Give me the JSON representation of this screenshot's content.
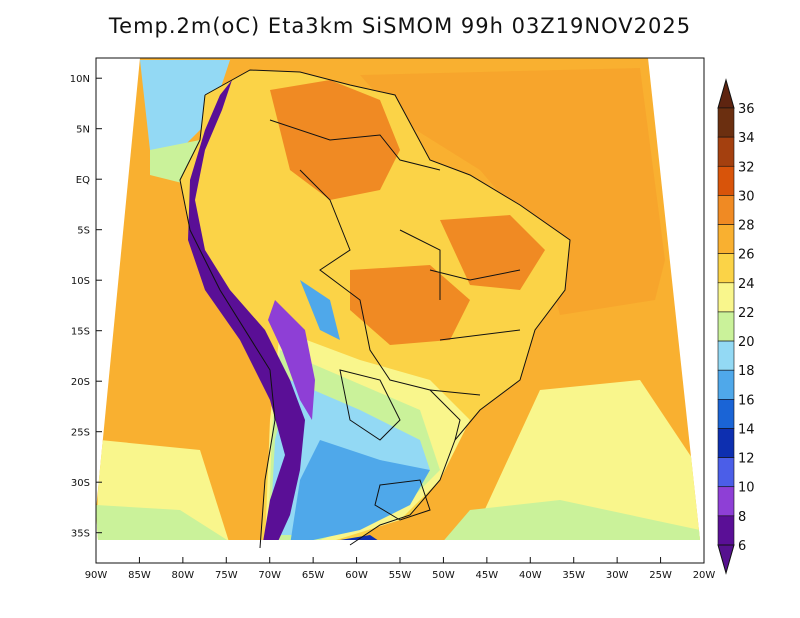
{
  "title": "Temp.2m(oC) Eta3km SiSMOM 99h 03Z19NOV2025",
  "map": {
    "y_axis": {
      "labels": [
        "10N",
        "5N",
        "EQ",
        "5S",
        "10S",
        "15S",
        "20S",
        "25S",
        "30S",
        "35S"
      ],
      "lats": [
        10,
        5,
        0,
        -5,
        -10,
        -15,
        -20,
        -25,
        -30,
        -35
      ]
    },
    "x_axis": {
      "labels": [
        "90W",
        "85W",
        "80W",
        "75W",
        "70W",
        "65W",
        "60W",
        "55W",
        "50W",
        "45W",
        "40W",
        "35W",
        "30W",
        "25W",
        "20W"
      ],
      "lons": [
        -90,
        -85,
        -80,
        -75,
        -70,
        -65,
        -60,
        -55,
        -50,
        -45,
        -40,
        -35,
        -30,
        -25,
        -20
      ]
    },
    "lat_range": [
      -38,
      12
    ],
    "lon_range": [
      -90,
      -20
    ],
    "field": "2 m temperature (°C)"
  },
  "colorbar": {
    "labels": [
      "36",
      "34",
      "32",
      "30",
      "28",
      "26",
      "24",
      "22",
      "20",
      "18",
      "16",
      "14",
      "12",
      "10",
      "8",
      "6"
    ],
    "bins": [
      {
        "min": 34,
        "color": "#6b2f10"
      },
      {
        "min": 32,
        "color": "#a4400f"
      },
      {
        "min": 30,
        "color": "#d8540a"
      },
      {
        "min": 28,
        "color": "#f08a23"
      },
      {
        "min": 26,
        "color": "#f9b030"
      },
      {
        "min": 24,
        "color": "#fbd347"
      },
      {
        "min": 22,
        "color": "#f9f68c"
      },
      {
        "min": 20,
        "color": "#caf29a"
      },
      {
        "min": 18,
        "color": "#93d9f4"
      },
      {
        "min": 16,
        "color": "#4fa8ea"
      },
      {
        "min": 14,
        "color": "#1a64d6"
      },
      {
        "min": 12,
        "color": "#0d2fb0"
      },
      {
        "min": 10,
        "color": "#4b5ee8"
      },
      {
        "min": 8,
        "color": "#8e3fd6"
      },
      {
        "min": 6,
        "color": "#5a0f96"
      }
    ],
    "top_arrow_color": "#5e2410",
    "bottom_arrow_color": "#56118f"
  },
  "colors": {
    "ocean": "#f9b030",
    "ocean_warm": "#f7a52c",
    "land_warm": "#fbd347",
    "land_hot": "#f08a23",
    "andes_cold": "#5a0f96",
    "south_cool": "#4fa8ea"
  }
}
